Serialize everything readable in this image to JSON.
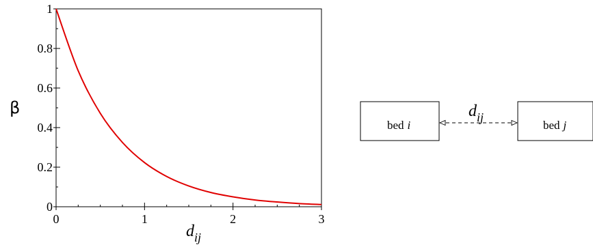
{
  "chart_data": {
    "type": "line",
    "title": "",
    "ylabel": "β",
    "xlabel": {
      "base": "d",
      "sub": "ij"
    },
    "xlim": [
      0,
      3
    ],
    "ylim": [
      0,
      1
    ],
    "xticks": [
      0,
      1,
      2,
      3
    ],
    "yticks": [
      0,
      0.2,
      0.4,
      0.6,
      0.8,
      1
    ],
    "xtick_labels": [
      "0",
      "1",
      "2",
      "3"
    ],
    "ytick_labels": [
      "0",
      "0.2",
      "0.4",
      "0.6",
      "0.8",
      "1"
    ],
    "grid": false,
    "series": [
      {
        "color": "#e00000",
        "x": [
          0,
          0.25,
          0.5,
          0.75,
          1,
          1.25,
          1.5,
          1.75,
          2,
          2.25,
          2.5,
          2.75,
          3
        ],
        "y": [
          1,
          0.687,
          0.472,
          0.325,
          0.223,
          0.153,
          0.105,
          0.072,
          0.05,
          0.034,
          0.024,
          0.016,
          0.011
        ]
      }
    ]
  },
  "diagram": {
    "box_left": {
      "text": "bed",
      "var": "i"
    },
    "box_right": {
      "text": "bed",
      "var": "j"
    },
    "connector": {
      "base": "d",
      "sub": "ij",
      "style": "dashed",
      "arrowheads": "both"
    }
  }
}
